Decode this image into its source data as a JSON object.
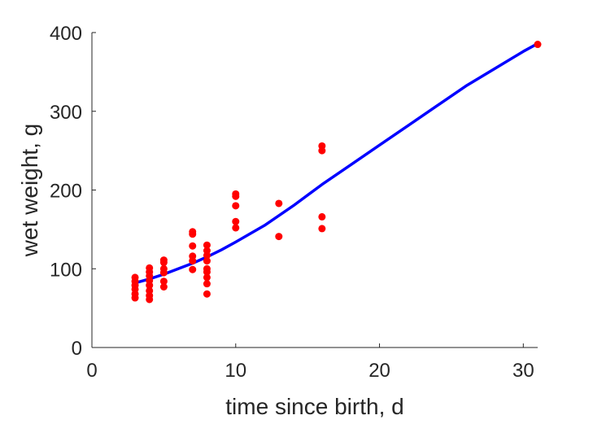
{
  "chart_data": {
    "type": "scatter",
    "title": "",
    "xlabel": "time since birth, d",
    "ylabel": "wet weight, g",
    "xlim": [
      0,
      31
    ],
    "ylim": [
      0,
      400
    ],
    "xticks": [
      0,
      10,
      20,
      30
    ],
    "yticks": [
      0,
      100,
      200,
      300,
      400
    ],
    "grid": false,
    "legend": "none",
    "series": [
      {
        "type": "scatter",
        "color": "#ff0000",
        "points": [
          [
            3,
            63
          ],
          [
            3,
            68
          ],
          [
            3,
            74
          ],
          [
            3,
            79
          ],
          [
            3,
            84
          ],
          [
            3,
            89
          ],
          [
            4,
            61
          ],
          [
            4,
            66
          ],
          [
            4,
            72
          ],
          [
            4,
            79
          ],
          [
            4,
            85
          ],
          [
            4,
            91
          ],
          [
            4,
            96
          ],
          [
            4,
            101
          ],
          [
            5,
            77
          ],
          [
            5,
            84
          ],
          [
            5,
            95
          ],
          [
            5,
            100
          ],
          [
            5,
            108
          ],
          [
            5,
            111
          ],
          [
            7,
            99
          ],
          [
            7,
            110
          ],
          [
            7,
            116
          ],
          [
            7,
            129
          ],
          [
            7,
            144
          ],
          [
            7,
            147
          ],
          [
            8,
            68
          ],
          [
            8,
            81
          ],
          [
            8,
            89
          ],
          [
            8,
            96
          ],
          [
            8,
            100
          ],
          [
            8,
            110
          ],
          [
            8,
            117
          ],
          [
            8,
            123
          ],
          [
            8,
            130
          ],
          [
            10,
            152
          ],
          [
            10,
            160
          ],
          [
            10,
            180
          ],
          [
            10,
            192
          ],
          [
            10,
            195
          ],
          [
            13,
            141
          ],
          [
            13,
            183
          ],
          [
            16,
            151
          ],
          [
            16,
            166
          ],
          [
            16,
            250
          ],
          [
            16,
            256
          ],
          [
            31,
            385
          ]
        ]
      },
      {
        "type": "line",
        "color": "#0000ff",
        "points": [
          [
            3,
            82
          ],
          [
            4,
            87
          ],
          [
            5,
            93
          ],
          [
            6,
            100
          ],
          [
            7,
            107
          ],
          [
            8,
            115
          ],
          [
            9,
            124
          ],
          [
            10,
            134
          ],
          [
            12,
            155
          ],
          [
            14,
            180
          ],
          [
            16,
            207
          ],
          [
            18,
            232
          ],
          [
            20,
            257
          ],
          [
            22,
            282
          ],
          [
            24,
            307
          ],
          [
            26,
            332
          ],
          [
            28,
            354
          ],
          [
            30,
            376
          ],
          [
            31,
            386
          ]
        ]
      }
    ]
  }
}
